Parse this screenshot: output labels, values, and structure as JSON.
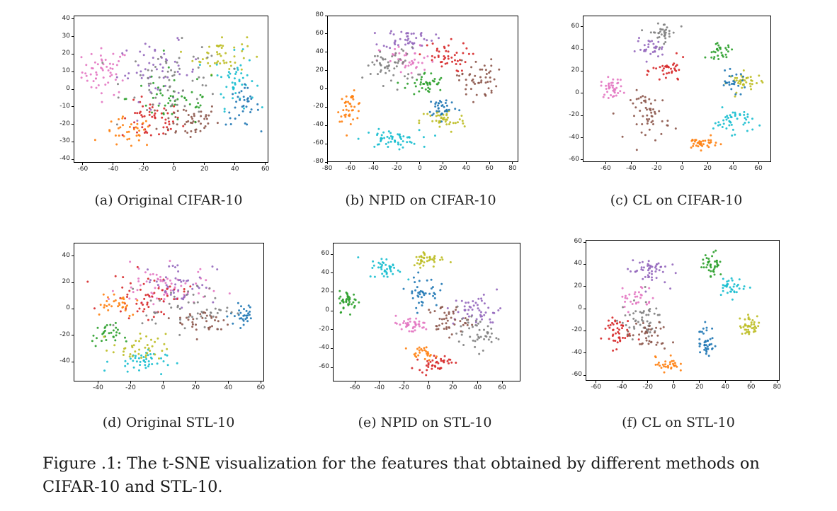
{
  "figure": {
    "caption": "Figure .1: The t-SNE visualization for the features that obtained by different methods on CIFAR-10 and STL-10."
  },
  "palette": [
    "#1f77b4",
    "#ff7f0e",
    "#2ca02c",
    "#d62728",
    "#9467bd",
    "#8c564b",
    "#e377c2",
    "#7f7f7f",
    "#bcbd22",
    "#17becf"
  ],
  "panels": [
    {
      "caption": "(a) Original CIFAR-10"
    },
    {
      "caption": "(b) NPID on CIFAR-10"
    },
    {
      "caption": "(c) CL on CIFAR-10"
    },
    {
      "caption": "(d) Original STL-10"
    },
    {
      "caption": "(e) NPID on STL-10"
    },
    {
      "caption": "(f) CL on STL-10"
    }
  ],
  "chart_data": [
    {
      "type": "scatter",
      "title": "(a) Original CIFAR-10",
      "xlim": [
        -66,
        62
      ],
      "ylim": [
        -42,
        42
      ],
      "xticks": [
        -60,
        -40,
        -20,
        0,
        20,
        40,
        60
      ],
      "yticks": [
        -40,
        -30,
        -20,
        -10,
        0,
        10,
        20,
        30,
        40
      ],
      "clusters": [
        {
          "c": 6,
          "x": -45,
          "y": 10,
          "sx": 14,
          "sy": 12,
          "n": 55
        },
        {
          "c": 3,
          "x": -15,
          "y": -18,
          "sx": 18,
          "sy": 10,
          "n": 55
        },
        {
          "c": 5,
          "x": 10,
          "y": -18,
          "sx": 18,
          "sy": 10,
          "n": 50
        },
        {
          "c": 9,
          "x": 40,
          "y": 5,
          "sx": 12,
          "sy": 14,
          "n": 45
        },
        {
          "c": 8,
          "x": 30,
          "y": 20,
          "sx": 16,
          "sy": 10,
          "n": 45
        },
        {
          "c": 4,
          "x": -10,
          "y": 10,
          "sx": 25,
          "sy": 15,
          "n": 55
        },
        {
          "c": 0,
          "x": 45,
          "y": -10,
          "sx": 10,
          "sy": 10,
          "n": 35
        },
        {
          "c": 2,
          "x": 0,
          "y": -5,
          "sx": 28,
          "sy": 15,
          "n": 50
        },
        {
          "c": 1,
          "x": -30,
          "y": -25,
          "sx": 15,
          "sy": 8,
          "n": 35
        },
        {
          "c": 7,
          "x": 0,
          "y": 5,
          "sx": 30,
          "sy": 18,
          "n": 60
        }
      ]
    },
    {
      "type": "scatter",
      "title": "(b) NPID on CIFAR-10",
      "xlim": [
        -80,
        85
      ],
      "ylim": [
        -80,
        80
      ],
      "xticks": [
        -80,
        -60,
        -40,
        -20,
        0,
        20,
        40,
        60,
        80
      ],
      "yticks": [
        -80,
        -60,
        -40,
        -20,
        0,
        20,
        40,
        60,
        80
      ],
      "clusters": [
        {
          "c": 1,
          "x": -60,
          "y": -20,
          "sx": 10,
          "sy": 14,
          "n": 40
        },
        {
          "c": 9,
          "x": -25,
          "y": -55,
          "sx": 22,
          "sy": 9,
          "n": 55
        },
        {
          "c": 8,
          "x": 20,
          "y": -35,
          "sx": 18,
          "sy": 12,
          "n": 45
        },
        {
          "c": 0,
          "x": 20,
          "y": -20,
          "sx": 12,
          "sy": 10,
          "n": 35
        },
        {
          "c": 2,
          "x": 5,
          "y": 5,
          "sx": 15,
          "sy": 12,
          "n": 40
        },
        {
          "c": 4,
          "x": -10,
          "y": 55,
          "sx": 20,
          "sy": 10,
          "n": 45
        },
        {
          "c": 3,
          "x": 20,
          "y": 35,
          "sx": 20,
          "sy": 15,
          "n": 45
        },
        {
          "c": 5,
          "x": 50,
          "y": 10,
          "sx": 15,
          "sy": 20,
          "n": 50
        },
        {
          "c": 6,
          "x": -10,
          "y": 30,
          "sx": 22,
          "sy": 15,
          "n": 40
        },
        {
          "c": 7,
          "x": -25,
          "y": 25,
          "sx": 20,
          "sy": 18,
          "n": 55
        }
      ]
    },
    {
      "type": "scatter",
      "title": "(c) CL on CIFAR-10",
      "xlim": [
        -78,
        70
      ],
      "ylim": [
        -62,
        70
      ],
      "xticks": [
        -60,
        -40,
        -20,
        0,
        20,
        40,
        60
      ],
      "yticks": [
        -60,
        -40,
        -20,
        0,
        20,
        40,
        60
      ],
      "clusters": [
        {
          "c": 6,
          "x": -55,
          "y": 5,
          "sx": 8,
          "sy": 8,
          "n": 40
        },
        {
          "c": 7,
          "x": -15,
          "y": 55,
          "sx": 10,
          "sy": 8,
          "n": 35
        },
        {
          "c": 4,
          "x": -25,
          "y": 40,
          "sx": 10,
          "sy": 8,
          "n": 30
        },
        {
          "c": 5,
          "x": -25,
          "y": -20,
          "sx": 14,
          "sy": 20,
          "n": 55
        },
        {
          "c": 2,
          "x": 30,
          "y": 38,
          "sx": 10,
          "sy": 6,
          "n": 30
        },
        {
          "c": 8,
          "x": 50,
          "y": 10,
          "sx": 12,
          "sy": 8,
          "n": 40
        },
        {
          "c": 9,
          "x": 40,
          "y": -25,
          "sx": 14,
          "sy": 10,
          "n": 45
        },
        {
          "c": 1,
          "x": 15,
          "y": -45,
          "sx": 12,
          "sy": 5,
          "n": 35
        },
        {
          "c": 0,
          "x": 40,
          "y": 10,
          "sx": 10,
          "sy": 8,
          "n": 25
        },
        {
          "c": 3,
          "x": -10,
          "y": 20,
          "sx": 12,
          "sy": 10,
          "n": 35
        }
      ]
    },
    {
      "type": "scatter",
      "title": "(d) Original STL-10",
      "xlim": [
        -55,
        62
      ],
      "ylim": [
        -55,
        50
      ],
      "xticks": [
        -40,
        -20,
        0,
        20,
        40,
        60
      ],
      "yticks": [
        -40,
        -20,
        0,
        20,
        40
      ],
      "clusters": [
        {
          "c": 6,
          "x": 0,
          "y": 15,
          "sx": 25,
          "sy": 15,
          "n": 70
        },
        {
          "c": 3,
          "x": -10,
          "y": 10,
          "sx": 22,
          "sy": 15,
          "n": 55
        },
        {
          "c": 4,
          "x": 10,
          "y": 20,
          "sx": 20,
          "sy": 15,
          "n": 45
        },
        {
          "c": 9,
          "x": -15,
          "y": -40,
          "sx": 15,
          "sy": 8,
          "n": 45
        },
        {
          "c": 2,
          "x": -35,
          "y": -20,
          "sx": 8,
          "sy": 8,
          "n": 30
        },
        {
          "c": 8,
          "x": -15,
          "y": -30,
          "sx": 15,
          "sy": 10,
          "n": 40
        },
        {
          "c": 0,
          "x": 50,
          "y": -5,
          "sx": 8,
          "sy": 8,
          "n": 30
        },
        {
          "c": 7,
          "x": 15,
          "y": 0,
          "sx": 25,
          "sy": 15,
          "n": 55
        },
        {
          "c": 5,
          "x": 25,
          "y": -10,
          "sx": 15,
          "sy": 10,
          "n": 35
        },
        {
          "c": 1,
          "x": -30,
          "y": 5,
          "sx": 15,
          "sy": 10,
          "n": 30
        }
      ]
    },
    {
      "type": "scatter",
      "title": "(e) NPID on STL-10",
      "xlim": [
        -78,
        75
      ],
      "ylim": [
        -75,
        72
      ],
      "xticks": [
        -60,
        -40,
        -20,
        0,
        20,
        40,
        60
      ],
      "yticks": [
        -60,
        -40,
        -20,
        0,
        20,
        40,
        60
      ],
      "clusters": [
        {
          "c": 2,
          "x": -65,
          "y": 10,
          "sx": 7,
          "sy": 10,
          "n": 40
        },
        {
          "c": 9,
          "x": -35,
          "y": 45,
          "sx": 12,
          "sy": 10,
          "n": 40
        },
        {
          "c": 8,
          "x": 0,
          "y": 55,
          "sx": 12,
          "sy": 8,
          "n": 40
        },
        {
          "c": 0,
          "x": -5,
          "y": 20,
          "sx": 12,
          "sy": 15,
          "n": 40
        },
        {
          "c": 6,
          "x": -15,
          "y": -15,
          "sx": 15,
          "sy": 8,
          "n": 40
        },
        {
          "c": 3,
          "x": 5,
          "y": -55,
          "sx": 12,
          "sy": 8,
          "n": 40
        },
        {
          "c": 1,
          "x": -5,
          "y": -45,
          "sx": 10,
          "sy": 6,
          "n": 25
        },
        {
          "c": 4,
          "x": 40,
          "y": 0,
          "sx": 18,
          "sy": 15,
          "n": 50
        },
        {
          "c": 5,
          "x": 15,
          "y": -10,
          "sx": 15,
          "sy": 15,
          "n": 45
        },
        {
          "c": 7,
          "x": 40,
          "y": -25,
          "sx": 15,
          "sy": 15,
          "n": 45
        }
      ]
    },
    {
      "type": "scatter",
      "title": "(f) CL on STL-10",
      "xlim": [
        -68,
        82
      ],
      "ylim": [
        -65,
        62
      ],
      "xticks": [
        -60,
        -40,
        -20,
        0,
        20,
        40,
        60,
        80
      ],
      "yticks": [
        -60,
        -40,
        -20,
        0,
        20,
        40,
        60
      ],
      "clusters": [
        {
          "c": 4,
          "x": -20,
          "y": 35,
          "sx": 14,
          "sy": 12,
          "n": 50
        },
        {
          "c": 3,
          "x": -45,
          "y": -20,
          "sx": 10,
          "sy": 14,
          "n": 45
        },
        {
          "c": 7,
          "x": -25,
          "y": -10,
          "sx": 15,
          "sy": 15,
          "n": 50
        },
        {
          "c": 5,
          "x": -20,
          "y": -25,
          "sx": 15,
          "sy": 12,
          "n": 40
        },
        {
          "c": 1,
          "x": -5,
          "y": -50,
          "sx": 8,
          "sy": 6,
          "n": 30
        },
        {
          "c": 0,
          "x": 25,
          "y": -30,
          "sx": 6,
          "sy": 15,
          "n": 40
        },
        {
          "c": 2,
          "x": 30,
          "y": 40,
          "sx": 7,
          "sy": 10,
          "n": 40
        },
        {
          "c": 9,
          "x": 45,
          "y": 20,
          "sx": 10,
          "sy": 7,
          "n": 35
        },
        {
          "c": 8,
          "x": 60,
          "y": -15,
          "sx": 8,
          "sy": 8,
          "n": 40
        },
        {
          "c": 6,
          "x": -30,
          "y": 10,
          "sx": 12,
          "sy": 12,
          "n": 30
        }
      ]
    }
  ]
}
